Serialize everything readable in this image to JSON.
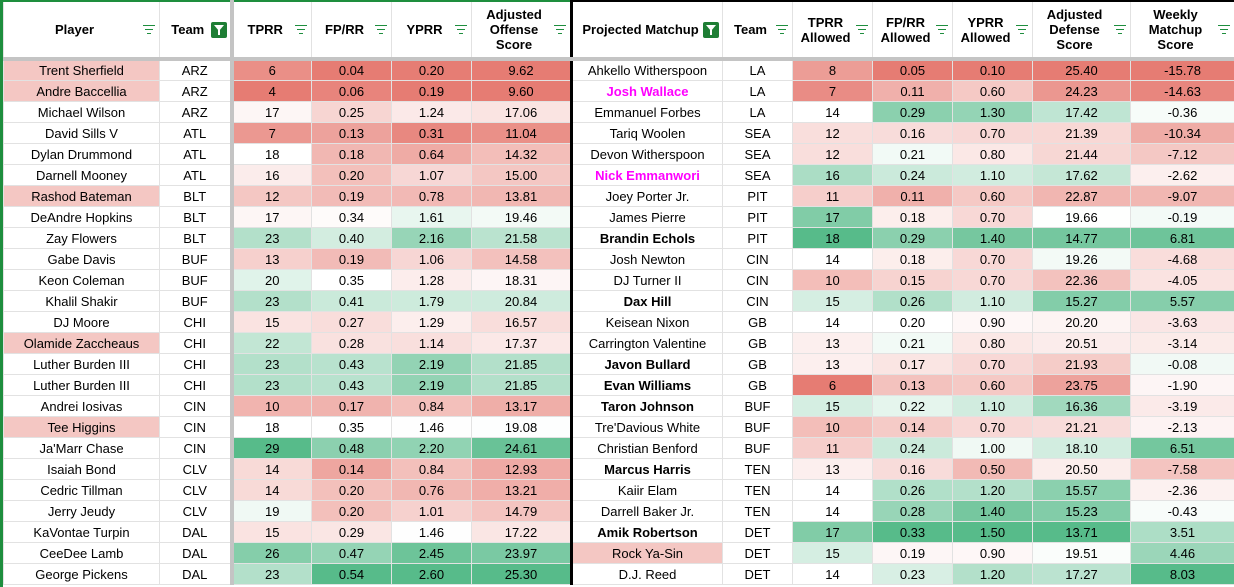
{
  "headers": {
    "player": "Player",
    "team": "Team",
    "tprr": "TPRR",
    "fprr": "FP/RR",
    "yprr": "YPRR",
    "aos": "Adjusted Offense Score",
    "matchup": "Projected Matchup",
    "team2": "Team",
    "tprr_allowed": "TPRR Allowed",
    "fprr_allowed": "FP/RR Allowed",
    "yprr_allowed": "YPRR Allowed",
    "ads": "Adjusted Defense Score",
    "wms": "Weekly Matchup Score"
  },
  "colors": {
    "red": "#e67c73",
    "green": "#57bb8a",
    "highlight": "#f4c7c3",
    "magenta": "#ff00ff",
    "filter": "#1e8e3e"
  },
  "rows": [
    {
      "player": "Trent Sherfield",
      "team": "ARZ",
      "tprr": "6",
      "fprr": "0.04",
      "yprr": "0.20",
      "aos": "9.62",
      "matchup": "Ahkello Witherspoon",
      "team2": "LA",
      "tprr_a": "8",
      "fprr_a": "0.05",
      "yprr_a": "0.10",
      "ads": "25.40",
      "wms": "-15.78",
      "hl": true
    },
    {
      "player": "Andre Baccellia",
      "team": "ARZ",
      "tprr": "4",
      "fprr": "0.06",
      "yprr": "0.19",
      "aos": "9.60",
      "matchup": "Josh Wallace",
      "team2": "LA",
      "tprr_a": "7",
      "fprr_a": "0.11",
      "yprr_a": "0.60",
      "ads": "24.23",
      "wms": "-14.63",
      "hl": true,
      "mstyle": "mag"
    },
    {
      "player": "Michael Wilson",
      "team": "ARZ",
      "tprr": "17",
      "fprr": "0.25",
      "yprr": "1.24",
      "aos": "17.06",
      "matchup": "Emmanuel Forbes",
      "team2": "LA",
      "tprr_a": "14",
      "fprr_a": "0.29",
      "yprr_a": "1.30",
      "ads": "17.42",
      "wms": "-0.36"
    },
    {
      "player": "David Sills V",
      "team": "ATL",
      "tprr": "7",
      "fprr": "0.13",
      "yprr": "0.31",
      "aos": "11.04",
      "matchup": "Tariq Woolen",
      "team2": "SEA",
      "tprr_a": "12",
      "fprr_a": "0.16",
      "yprr_a": "0.70",
      "ads": "21.39",
      "wms": "-10.34"
    },
    {
      "player": "Dylan Drummond",
      "team": "ATL",
      "tprr": "18",
      "fprr": "0.18",
      "yprr": "0.64",
      "aos": "14.32",
      "matchup": "Devon Witherspoon",
      "team2": "SEA",
      "tprr_a": "12",
      "fprr_a": "0.21",
      "yprr_a": "0.80",
      "ads": "21.44",
      "wms": "-7.12"
    },
    {
      "player": "Darnell Mooney",
      "team": "ATL",
      "tprr": "16",
      "fprr": "0.20",
      "yprr": "1.07",
      "aos": "15.00",
      "matchup": "Nick Emmanwori",
      "team2": "SEA",
      "tprr_a": "16",
      "fprr_a": "0.24",
      "yprr_a": "1.10",
      "ads": "17.62",
      "wms": "-2.62",
      "mstyle": "mag"
    },
    {
      "player": "Rashod Bateman",
      "team": "BLT",
      "tprr": "12",
      "fprr": "0.19",
      "yprr": "0.78",
      "aos": "13.81",
      "matchup": "Joey Porter Jr.",
      "team2": "PIT",
      "tprr_a": "11",
      "fprr_a": "0.11",
      "yprr_a": "0.60",
      "ads": "22.87",
      "wms": "-9.07",
      "hl": true
    },
    {
      "player": "DeAndre Hopkins",
      "team": "BLT",
      "tprr": "17",
      "fprr": "0.34",
      "yprr": "1.61",
      "aos": "19.46",
      "matchup": "James Pierre",
      "team2": "PIT",
      "tprr_a": "17",
      "fprr_a": "0.18",
      "yprr_a": "0.70",
      "ads": "19.66",
      "wms": "-0.19"
    },
    {
      "player": "Zay Flowers",
      "team": "BLT",
      "tprr": "23",
      "fprr": "0.40",
      "yprr": "2.16",
      "aos": "21.58",
      "matchup": "Brandin Echols",
      "team2": "PIT",
      "tprr_a": "18",
      "fprr_a": "0.29",
      "yprr_a": "1.40",
      "ads": "14.77",
      "wms": "6.81",
      "mstyle": "bold"
    },
    {
      "player": "Gabe Davis",
      "team": "BUF",
      "tprr": "13",
      "fprr": "0.19",
      "yprr": "1.06",
      "aos": "14.58",
      "matchup": "Josh Newton",
      "team2": "CIN",
      "tprr_a": "14",
      "fprr_a": "0.18",
      "yprr_a": "0.70",
      "ads": "19.26",
      "wms": "-4.68"
    },
    {
      "player": "Keon Coleman",
      "team": "BUF",
      "tprr": "20",
      "fprr": "0.35",
      "yprr": "1.28",
      "aos": "18.31",
      "matchup": "DJ Turner II",
      "team2": "CIN",
      "tprr_a": "10",
      "fprr_a": "0.15",
      "yprr_a": "0.70",
      "ads": "22.36",
      "wms": "-4.05"
    },
    {
      "player": "Khalil Shakir",
      "team": "BUF",
      "tprr": "23",
      "fprr": "0.41",
      "yprr": "1.79",
      "aos": "20.84",
      "matchup": "Dax Hill",
      "team2": "CIN",
      "tprr_a": "15",
      "fprr_a": "0.26",
      "yprr_a": "1.10",
      "ads": "15.27",
      "wms": "5.57",
      "mstyle": "bold"
    },
    {
      "player": "DJ Moore",
      "team": "CHI",
      "tprr": "15",
      "fprr": "0.27",
      "yprr": "1.29",
      "aos": "16.57",
      "matchup": "Keisean Nixon",
      "team2": "GB",
      "tprr_a": "14",
      "fprr_a": "0.20",
      "yprr_a": "0.90",
      "ads": "20.20",
      "wms": "-3.63"
    },
    {
      "player": "Olamide Zaccheaus",
      "team": "CHI",
      "tprr": "22",
      "fprr": "0.28",
      "yprr": "1.14",
      "aos": "17.37",
      "matchup": "Carrington Valentine",
      "team2": "GB",
      "tprr_a": "13",
      "fprr_a": "0.21",
      "yprr_a": "0.80",
      "ads": "20.51",
      "wms": "-3.14",
      "hl": true
    },
    {
      "player": "Luther Burden III",
      "team": "CHI",
      "tprr": "23",
      "fprr": "0.43",
      "yprr": "2.19",
      "aos": "21.85",
      "matchup": "Javon Bullard",
      "team2": "GB",
      "tprr_a": "13",
      "fprr_a": "0.17",
      "yprr_a": "0.70",
      "ads": "21.93",
      "wms": "-0.08",
      "mstyle": "bold"
    },
    {
      "player": "Luther Burden III",
      "team": "CHI",
      "tprr": "23",
      "fprr": "0.43",
      "yprr": "2.19",
      "aos": "21.85",
      "matchup": "Evan Williams",
      "team2": "GB",
      "tprr_a": "6",
      "fprr_a": "0.13",
      "yprr_a": "0.60",
      "ads": "23.75",
      "wms": "-1.90",
      "mstyle": "bold"
    },
    {
      "player": "Andrei Iosivas",
      "team": "CIN",
      "tprr": "10",
      "fprr": "0.17",
      "yprr": "0.84",
      "aos": "13.17",
      "matchup": "Taron Johnson",
      "team2": "BUF",
      "tprr_a": "15",
      "fprr_a": "0.22",
      "yprr_a": "1.10",
      "ads": "16.36",
      "wms": "-3.19",
      "mstyle": "bold"
    },
    {
      "player": "Tee Higgins",
      "team": "CIN",
      "tprr": "18",
      "fprr": "0.35",
      "yprr": "1.46",
      "aos": "19.08",
      "matchup": "Tre'Davious White",
      "team2": "BUF",
      "tprr_a": "10",
      "fprr_a": "0.14",
      "yprr_a": "0.70",
      "ads": "21.21",
      "wms": "-2.13",
      "hl": true
    },
    {
      "player": "Ja'Marr Chase",
      "team": "CIN",
      "tprr": "29",
      "fprr": "0.48",
      "yprr": "2.20",
      "aos": "24.61",
      "matchup": "Christian Benford",
      "team2": "BUF",
      "tprr_a": "11",
      "fprr_a": "0.24",
      "yprr_a": "1.00",
      "ads": "18.10",
      "wms": "6.51"
    },
    {
      "player": "Isaiah Bond",
      "team": "CLV",
      "tprr": "14",
      "fprr": "0.14",
      "yprr": "0.84",
      "aos": "12.93",
      "matchup": "Marcus Harris",
      "team2": "TEN",
      "tprr_a": "13",
      "fprr_a": "0.16",
      "yprr_a": "0.50",
      "ads": "20.50",
      "wms": "-7.58",
      "mstyle": "bold"
    },
    {
      "player": "Cedric Tillman",
      "team": "CLV",
      "tprr": "14",
      "fprr": "0.20",
      "yprr": "0.76",
      "aos": "13.21",
      "matchup": "Kaiir Elam",
      "team2": "TEN",
      "tprr_a": "14",
      "fprr_a": "0.26",
      "yprr_a": "1.20",
      "ads": "15.57",
      "wms": "-2.36"
    },
    {
      "player": "Jerry Jeudy",
      "team": "CLV",
      "tprr": "19",
      "fprr": "0.20",
      "yprr": "1.01",
      "aos": "14.79",
      "matchup": "Darrell Baker Jr.",
      "team2": "TEN",
      "tprr_a": "14",
      "fprr_a": "0.28",
      "yprr_a": "1.40",
      "ads": "15.23",
      "wms": "-0.43"
    },
    {
      "player": "KaVontae Turpin",
      "team": "DAL",
      "tprr": "15",
      "fprr": "0.29",
      "yprr": "1.46",
      "aos": "17.22",
      "matchup": "Amik Robertson",
      "team2": "DET",
      "tprr_a": "17",
      "fprr_a": "0.33",
      "yprr_a": "1.50",
      "ads": "13.71",
      "wms": "3.51",
      "mstyle": "bold"
    },
    {
      "player": "CeeDee Lamb",
      "team": "DAL",
      "tprr": "26",
      "fprr": "0.47",
      "yprr": "2.45",
      "aos": "23.97",
      "matchup": "Rock Ya-Sin",
      "team2": "DET",
      "tprr_a": "15",
      "fprr_a": "0.19",
      "yprr_a": "0.90",
      "ads": "19.51",
      "wms": "4.46",
      "mhl": true
    },
    {
      "player": "George Pickens",
      "team": "DAL",
      "tprr": "23",
      "fprr": "0.54",
      "yprr": "2.60",
      "aos": "25.30",
      "matchup": "D.J. Reed",
      "team2": "DET",
      "tprr_a": "14",
      "fprr_a": "0.23",
      "yprr_a": "1.20",
      "ads": "17.27",
      "wms": "8.03"
    }
  ]
}
